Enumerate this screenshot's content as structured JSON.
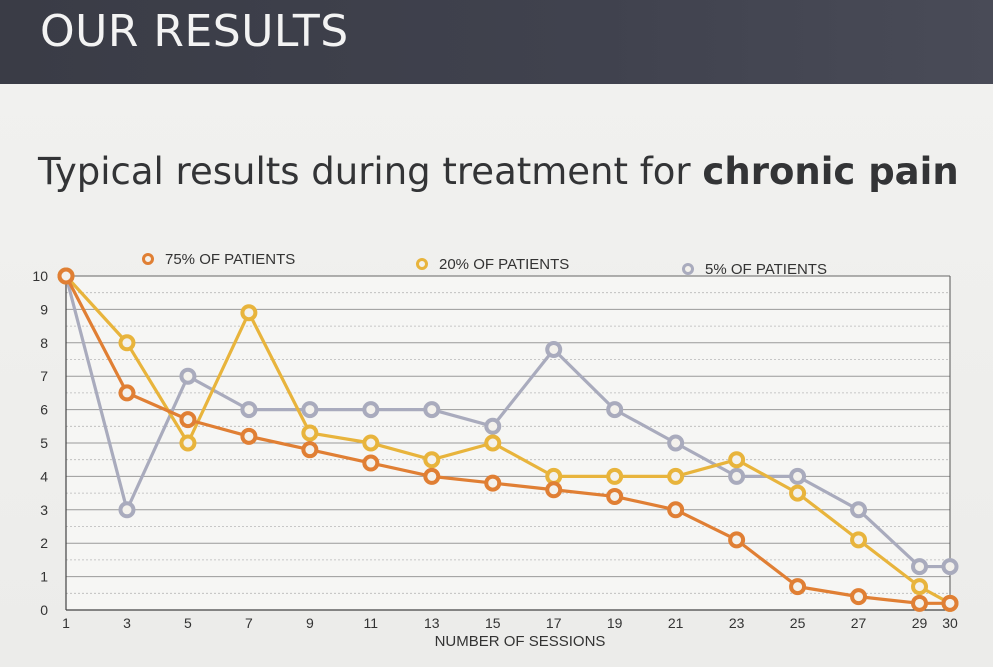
{
  "header": {
    "title": "OUR RESULTS"
  },
  "subtitle": {
    "normal": "Typical results during treatment for ",
    "bold": "chronic pain"
  },
  "chart_data": {
    "type": "line",
    "xlabel": "NUMBER OF SESSIONS",
    "ylabel": "",
    "xlim": [
      1,
      30
    ],
    "ylim": [
      0,
      10
    ],
    "x_ticks": [
      1,
      3,
      5,
      7,
      9,
      11,
      13,
      15,
      17,
      19,
      21,
      23,
      25,
      27,
      29,
      30
    ],
    "y_ticks": [
      0,
      1,
      2,
      3,
      4,
      5,
      6,
      7,
      8,
      9,
      10
    ],
    "x": [
      1,
      3,
      5,
      7,
      9,
      11,
      13,
      15,
      17,
      19,
      21,
      23,
      25,
      27,
      29,
      30
    ],
    "grid": true,
    "legend_position": "top",
    "series": [
      {
        "name": "75% OF PATIENTS",
        "color": "#e07f34",
        "values": [
          10,
          6.5,
          5.7,
          5.2,
          4.8,
          4.4,
          4.0,
          3.8,
          3.6,
          3.4,
          3.0,
          2.1,
          0.7,
          0.4,
          0.2,
          0.2
        ]
      },
      {
        "name": "20% OF PATIENTS",
        "color": "#e8b43c",
        "values": [
          10,
          8.0,
          5.0,
          8.9,
          5.3,
          5.0,
          4.5,
          5.0,
          4.0,
          4.0,
          4.0,
          4.5,
          3.5,
          2.1,
          0.7,
          0.2
        ]
      },
      {
        "name": "5% OF PATIENTS",
        "color": "#a9abbd",
        "values": [
          10,
          3.0,
          7.0,
          6.0,
          6.0,
          6.0,
          6.0,
          5.5,
          7.8,
          6.0,
          5.0,
          4.0,
          4.0,
          3.0,
          1.3,
          1.3
        ]
      }
    ]
  }
}
